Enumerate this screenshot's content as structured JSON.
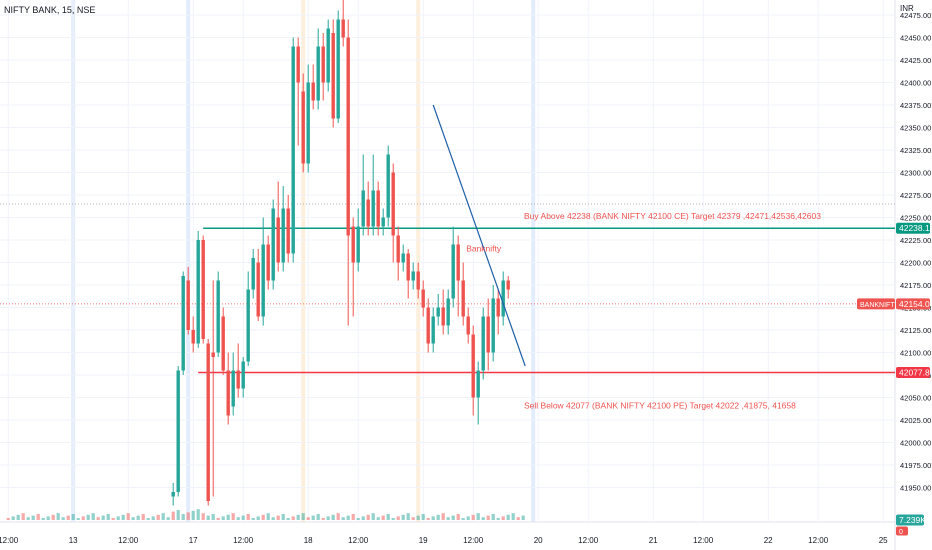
{
  "header": {
    "symbol_title": "NIFTY BANK, 15, NSE",
    "currency": "INR"
  },
  "colors": {
    "up": "#26a69a",
    "down": "#ef5350",
    "trendline": "#1f5fa8",
    "buy_line": "#089981",
    "sell_line": "#f23645",
    "grid": "#f0f3fa",
    "axis_text": "#131722",
    "session_blue": "#dbe7fb",
    "session_orange": "#fdebd6"
  },
  "chart_data": {
    "type": "candlestick",
    "y_axis": {
      "range": [
        41925,
        42480
      ],
      "tick_labels": [
        "42475.00",
        "42450.00",
        "42425.00",
        "42400.00",
        "42375.00",
        "42350.00",
        "42325.00",
        "42300.00",
        "42275.00",
        "42250.00",
        "42225.00",
        "42200.00",
        "42175.00",
        "42150.00",
        "42125.00",
        "42100.00",
        "42075.00",
        "42050.00",
        "42025.00",
        "42000.00",
        "41975.00",
        "41950.00"
      ]
    },
    "x_axis": {
      "tick_labels": [
        {
          "label": "12:00",
          "bar": 0
        },
        {
          "label": "13",
          "bar": 13
        },
        {
          "label": "12:00",
          "bar": 24
        },
        {
          "label": "17",
          "bar": 37
        },
        {
          "label": "12:00",
          "bar": 47
        },
        {
          "label": "18",
          "bar": 60
        },
        {
          "label": "12:00",
          "bar": 70
        },
        {
          "label": "19",
          "bar": 83
        },
        {
          "label": "12:00",
          "bar": 93
        },
        {
          "label": "20",
          "bar": 106
        },
        {
          "label": "12:00",
          "bar": 116
        },
        {
          "label": "21",
          "bar": 129
        },
        {
          "label": "12:00",
          "bar": 139
        },
        {
          "label": "22",
          "bar": 152
        },
        {
          "label": "12:00",
          "bar": 162
        },
        {
          "label": "25",
          "bar": 175
        }
      ],
      "session_lines": [
        {
          "bar": 13,
          "color": "blue"
        },
        {
          "bar": 36,
          "color": "blue"
        },
        {
          "bar": 59,
          "color": "orange"
        },
        {
          "bar": 82,
          "color": "orange"
        },
        {
          "bar": 105,
          "color": "blue"
        }
      ]
    },
    "candles_start_bar": 33,
    "candles": [
      [
        41940,
        41945,
        41930,
        41955
      ],
      [
        41945,
        42080,
        41940,
        42085
      ],
      [
        42080,
        42185,
        42075,
        42190
      ],
      [
        42180,
        42125,
        42120,
        42195
      ],
      [
        42125,
        42110,
        42100,
        42140
      ],
      [
        42110,
        42225,
        42105,
        42235
      ],
      [
        42225,
        42115,
        42110,
        42230
      ],
      [
        42110,
        41935,
        41930,
        42115
      ],
      [
        42100,
        42095,
        41940,
        42180
      ],
      [
        42100,
        42180,
        42095,
        42190
      ],
      [
        42140,
        42080,
        42075,
        42150
      ],
      [
        42080,
        42030,
        42020,
        42100
      ],
      [
        42040,
        42080,
        42030,
        42100
      ],
      [
        42080,
        42060,
        42050,
        42110
      ],
      [
        42060,
        42090,
        42050,
        42095
      ],
      [
        42090,
        42170,
        42085,
        42190
      ],
      [
        42170,
        42205,
        42160,
        42215
      ],
      [
        42200,
        42140,
        42135,
        42215
      ],
      [
        42140,
        42220,
        42130,
        42250
      ],
      [
        42220,
        42180,
        42170,
        42230
      ],
      [
        42180,
        42260,
        42170,
        42270
      ],
      [
        42250,
        42200,
        42190,
        42290
      ],
      [
        42200,
        42260,
        42190,
        42285
      ],
      [
        42260,
        42210,
        42200,
        42275
      ],
      [
        42210,
        42440,
        42200,
        42450
      ],
      [
        42440,
        42400,
        42330,
        42450
      ],
      [
        42390,
        42310,
        42300,
        42410
      ],
      [
        42310,
        42400,
        42300,
        42420
      ],
      [
        42400,
        42380,
        42370,
        42420
      ],
      [
        42380,
        42440,
        42370,
        42460
      ],
      [
        42440,
        42400,
        42380,
        42455
      ],
      [
        42400,
        42460,
        42390,
        42470
      ],
      [
        42455,
        42360,
        42350,
        42470
      ],
      [
        42360,
        42470,
        42355,
        42480
      ],
      [
        42470,
        42450,
        42440,
        42500
      ],
      [
        42450,
        42230,
        42130,
        42470
      ],
      [
        42240,
        42200,
        42140,
        42250
      ],
      [
        42200,
        42240,
        42190,
        42260
      ],
      [
        42240,
        42280,
        42230,
        42320
      ],
      [
        42270,
        42240,
        42230,
        42290
      ],
      [
        42240,
        42280,
        42230,
        42320
      ],
      [
        42280,
        42240,
        42230,
        42290
      ],
      [
        42240,
        42250,
        42230,
        42260
      ],
      [
        42250,
        42320,
        42240,
        42330
      ],
      [
        42300,
        42230,
        42200,
        42310
      ],
      [
        42230,
        42200,
        42180,
        42240
      ],
      [
        42200,
        42210,
        42190,
        42220
      ],
      [
        42210,
        42180,
        42160,
        42215
      ],
      [
        42180,
        42190,
        42170,
        42200
      ],
      [
        42190,
        42170,
        42160,
        42200
      ],
      [
        42170,
        42150,
        42140,
        42180
      ],
      [
        42150,
        42110,
        42100,
        42160
      ],
      [
        42110,
        42140,
        42100,
        42150
      ],
      [
        42140,
        42150,
        42130,
        42165
      ],
      [
        42150,
        42130,
        42120,
        42170
      ],
      [
        42130,
        42160,
        42120,
        42170
      ],
      [
        42160,
        42220,
        42150,
        42240
      ],
      [
        42220,
        42180,
        42140,
        42230
      ],
      [
        42180,
        42140,
        42130,
        42200
      ],
      [
        42140,
        42120,
        42110,
        42150
      ],
      [
        42120,
        42050,
        42030,
        42130
      ],
      [
        42050,
        42080,
        42020,
        42090
      ],
      [
        42080,
        42140,
        42070,
        42150
      ],
      [
        42140,
        42100,
        42080,
        42160
      ],
      [
        42100,
        42160,
        42090,
        42175
      ],
      [
        42160,
        42140,
        42120,
        42170
      ],
      [
        42140,
        42180,
        42130,
        42190
      ],
      [
        42180,
        42170,
        42160,
        42185
      ]
    ],
    "trendline": {
      "from": {
        "bar": 85,
        "value": 42375
      },
      "to": {
        "bar": 103.4,
        "value": 42085
      }
    },
    "buy_level": {
      "value": 42238.1,
      "label": "42238.10",
      "from_bar": 39
    },
    "sell_level": {
      "value": 42077.8,
      "label": "42077.80",
      "from_bar": 38
    },
    "current_price": {
      "value": 42154.0,
      "label": "42154.00",
      "tag": "BANKNIFTY"
    },
    "dotted_level": {
      "value": 42265
    },
    "annotations": {
      "buy_text": "Buy Above 42238 (BANK NIFTY 42100 CE) Target  42379 ,42471,42536,42603",
      "sell_text": "Sell Below 42077 (BANK NIFTY 42100 PE) Target  42022 ,41875, 41658",
      "mid_label": "Banknifty",
      "mid_label_anchor": {
        "bar": 94,
        "value": 42212
      }
    },
    "volume": {
      "label": "7.239K",
      "secondary_label": "0"
    }
  }
}
